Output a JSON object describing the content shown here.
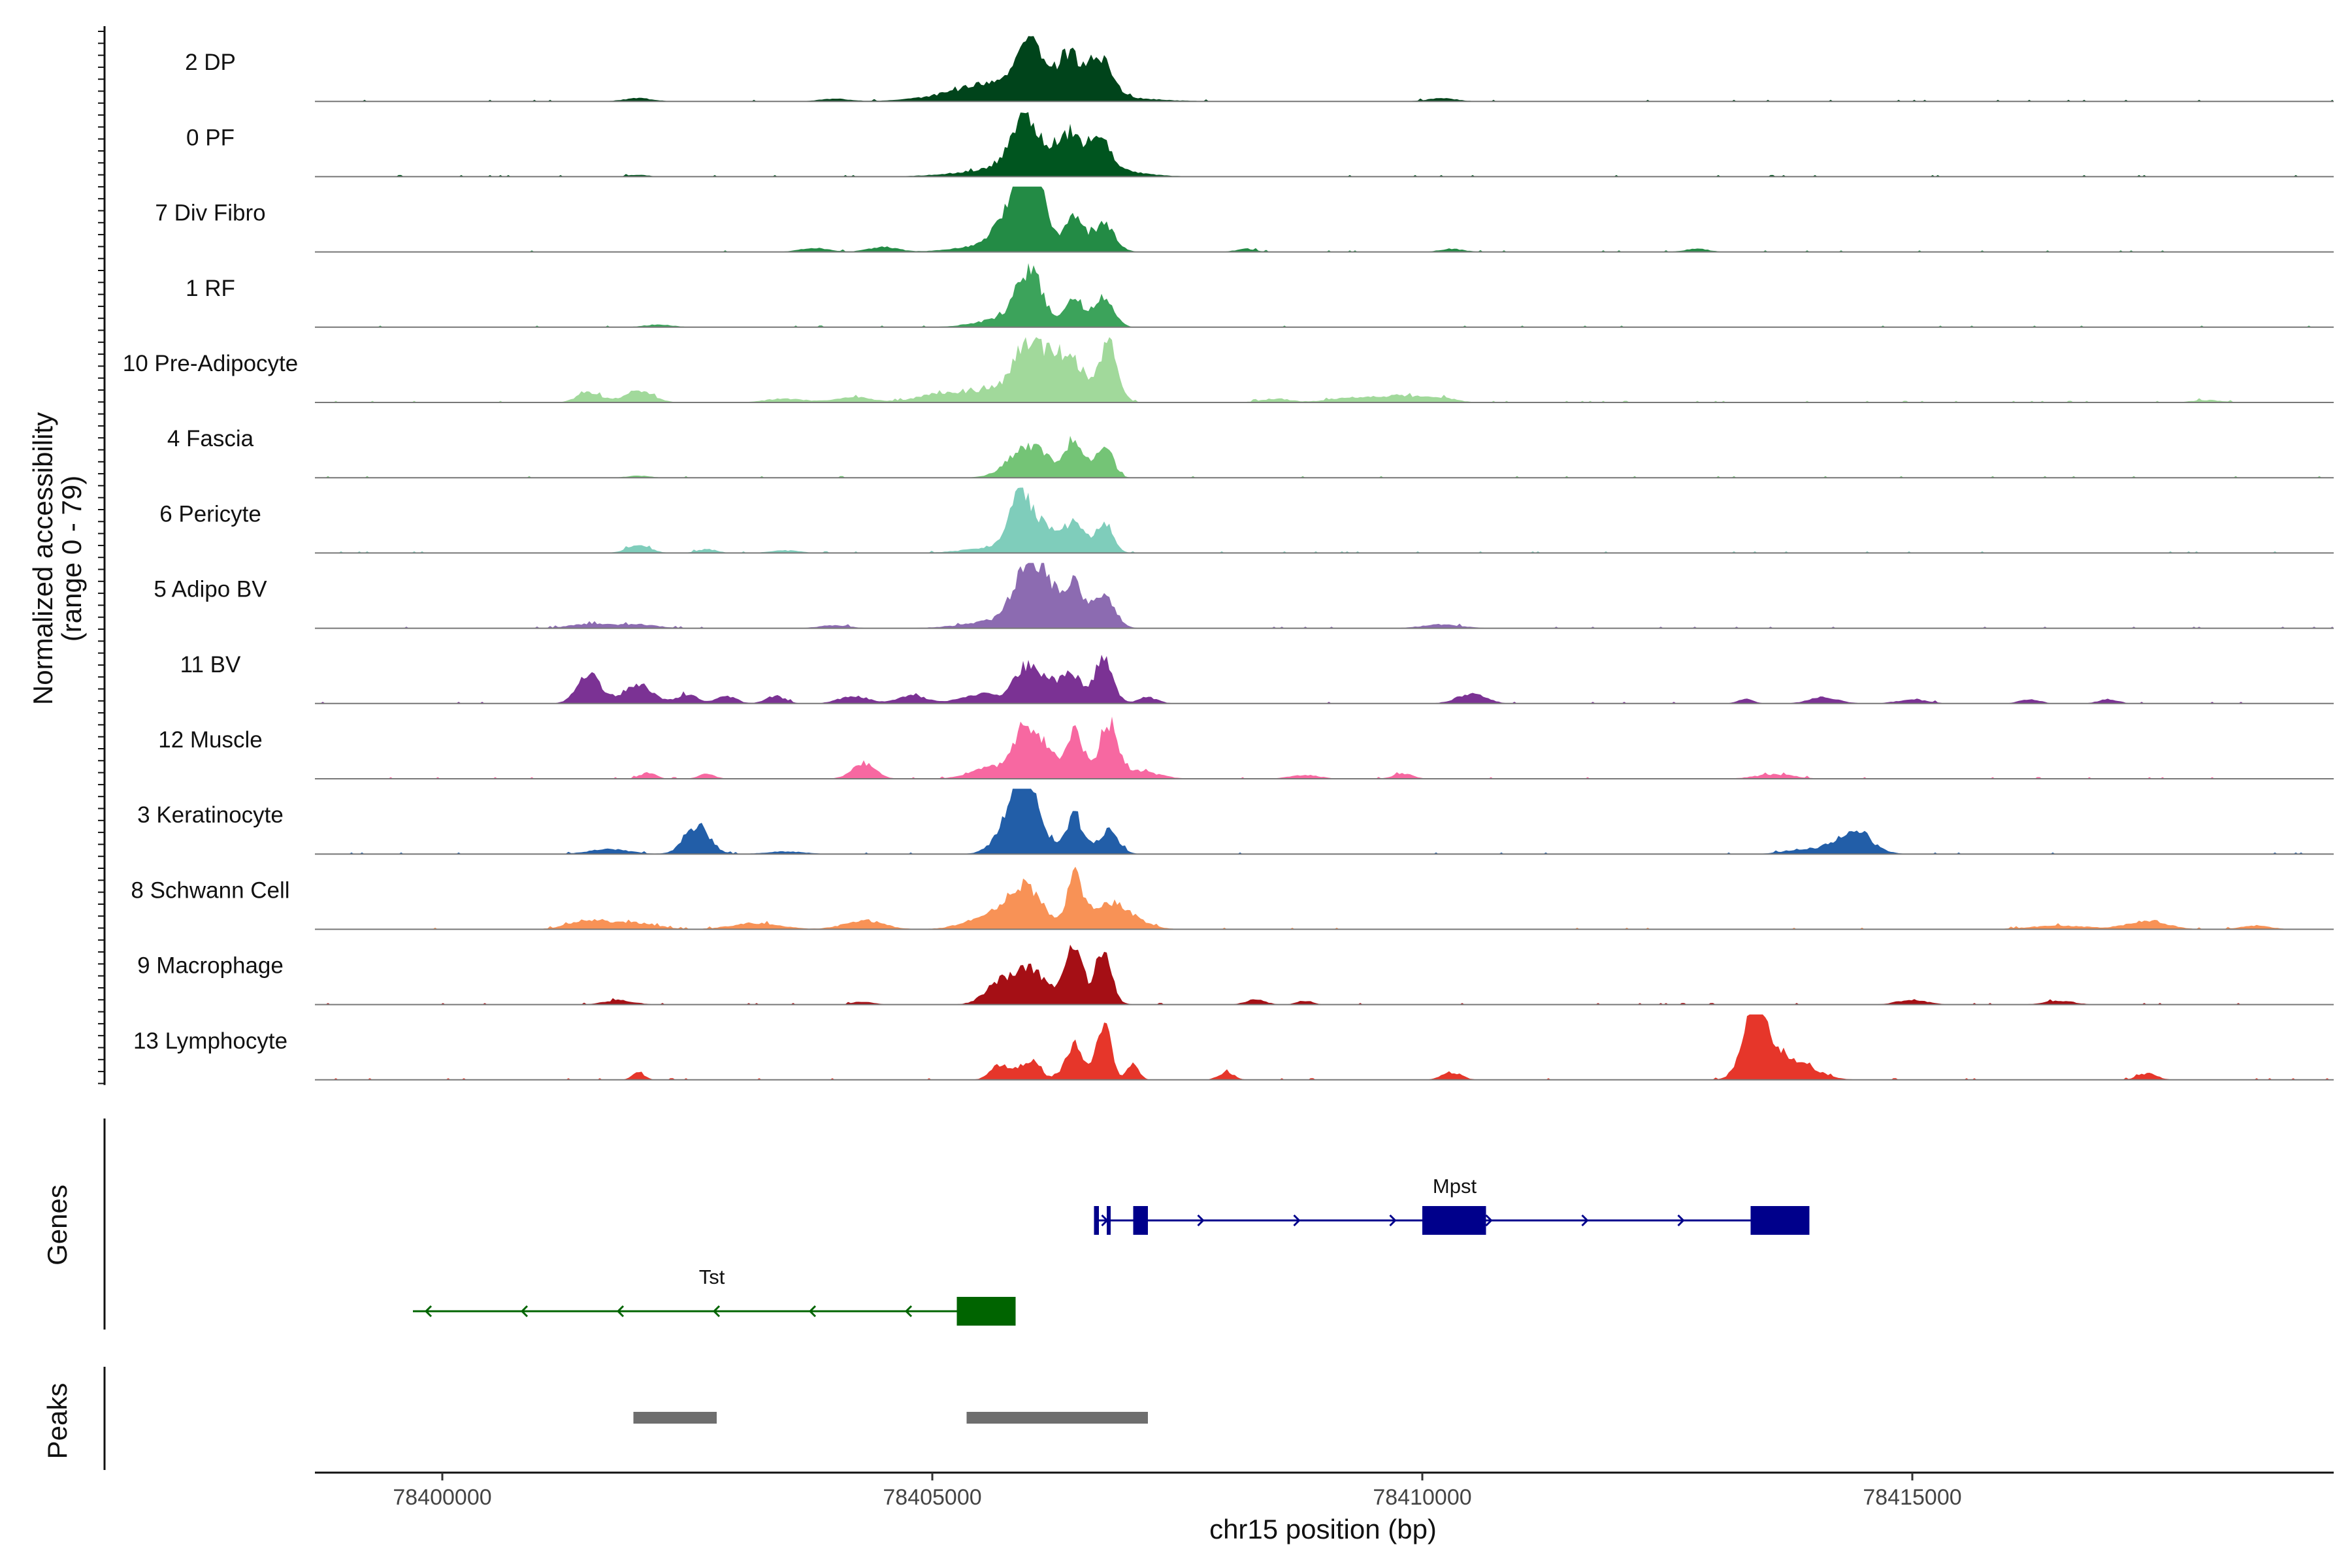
{
  "chart_data": {
    "type": "area",
    "subtype": "genome coverage track",
    "y_axis_title_line1": "Normalized accessibility",
    "y_axis_title_line2": "(range 0 - 79)",
    "y_range": [
      0,
      79
    ],
    "x_axis_title": "chr15 position (bp)",
    "x_range": [
      78398700,
      78419300
    ],
    "x_ticks": [
      78400000,
      78405000,
      78410000,
      78415000
    ],
    "x_tick_labels": [
      "78400000",
      "78405000",
      "78410000",
      "78415000"
    ],
    "panel_labels": {
      "genes": "Genes",
      "peaks": "Peaks"
    },
    "tracks": [
      {
        "name": "2 DP",
        "color": "#00441b",
        "peaks": [
          [
            78405950,
            0.55,
            120
          ],
          [
            78406030,
            0.32,
            80
          ],
          [
            78406380,
            0.58,
            110
          ],
          [
            78406700,
            0.62,
            120
          ],
          [
            78405600,
            0.14,
            380
          ],
          [
            78406050,
            0.2,
            650
          ],
          [
            78402000,
            0.05,
            150
          ],
          [
            78404000,
            0.04,
            150
          ],
          [
            78410200,
            0.05,
            150
          ]
        ]
      },
      {
        "name": "0 PF",
        "color": "#00551f",
        "peaks": [
          [
            78405950,
            0.75,
            140
          ],
          [
            78406380,
            0.48,
            110
          ],
          [
            78406700,
            0.55,
            110
          ],
          [
            78405900,
            0.15,
            500
          ],
          [
            78406600,
            0.12,
            400
          ],
          [
            78402000,
            0.03,
            100
          ]
        ]
      },
      {
        "name": "7 Div Fibro",
        "color": "#238b45",
        "peaks": [
          [
            78405950,
            0.98,
            110
          ],
          [
            78406100,
            0.5,
            100
          ],
          [
            78405800,
            0.4,
            150
          ],
          [
            78406450,
            0.47,
            90
          ],
          [
            78406750,
            0.42,
            110
          ],
          [
            78405850,
            0.18,
            400
          ],
          [
            78403800,
            0.06,
            150
          ],
          [
            78404500,
            0.08,
            150
          ],
          [
            78408200,
            0.05,
            100
          ],
          [
            78410300,
            0.05,
            120
          ],
          [
            78412800,
            0.05,
            120
          ]
        ]
      },
      {
        "name": "1 RF",
        "color": "#3ca35b",
        "peaks": [
          [
            78405950,
            0.5,
            120
          ],
          [
            78406050,
            0.38,
            100
          ],
          [
            78406450,
            0.45,
            90
          ],
          [
            78406750,
            0.48,
            100
          ],
          [
            78405800,
            0.15,
            300
          ],
          [
            78402200,
            0.04,
            150
          ]
        ]
      },
      {
        "name": "10 Pre-Adipocyte",
        "color": "#a1d99b",
        "peaks": [
          [
            78405950,
            0.58,
            120
          ],
          [
            78406200,
            0.55,
            150
          ],
          [
            78406450,
            0.45,
            120
          ],
          [
            78406800,
            0.98,
            90
          ],
          [
            78405800,
            0.25,
            450
          ],
          [
            78401500,
            0.16,
            120
          ],
          [
            78402000,
            0.18,
            150
          ],
          [
            78403500,
            0.06,
            200
          ],
          [
            78404200,
            0.08,
            200
          ],
          [
            78405000,
            0.08,
            200
          ],
          [
            78408500,
            0.06,
            150
          ],
          [
            78409300,
            0.08,
            250
          ],
          [
            78409800,
            0.1,
            200
          ],
          [
            78410200,
            0.07,
            150
          ],
          [
            78418000,
            0.04,
            150
          ]
        ]
      },
      {
        "name": "4 Fascia",
        "color": "#74c476",
        "peaks": [
          [
            78405950,
            0.3,
            180
          ],
          [
            78406450,
            0.55,
            80
          ],
          [
            78406750,
            0.5,
            90
          ],
          [
            78406100,
            0.22,
            250
          ],
          [
            78402000,
            0.03,
            120
          ]
        ]
      },
      {
        "name": "6 Pericyte",
        "color": "#7fcdbb",
        "peaks": [
          [
            78405900,
            0.78,
            110
          ],
          [
            78406150,
            0.35,
            120
          ],
          [
            78406450,
            0.5,
            90
          ],
          [
            78406750,
            0.5,
            90
          ],
          [
            78405800,
            0.12,
            350
          ],
          [
            78402000,
            0.12,
            120
          ],
          [
            78402700,
            0.06,
            100
          ],
          [
            78403500,
            0.04,
            150
          ]
        ]
      },
      {
        "name": "5 Adipo BV",
        "color": "#8c6bb1",
        "peaks": [
          [
            78405950,
            0.7,
            130
          ],
          [
            78406150,
            0.55,
            150
          ],
          [
            78406450,
            0.6,
            100
          ],
          [
            78406750,
            0.52,
            110
          ],
          [
            78405850,
            0.15,
            400
          ],
          [
            78401500,
            0.07,
            200
          ],
          [
            78402000,
            0.06,
            200
          ],
          [
            78404000,
            0.05,
            150
          ],
          [
            78410200,
            0.06,
            200
          ]
        ]
      },
      {
        "name": "11 BV",
        "color": "#7b3294",
        "peaks": [
          [
            78401500,
            0.45,
            120
          ],
          [
            78402000,
            0.3,
            150
          ],
          [
            78402500,
            0.15,
            100
          ],
          [
            78402900,
            0.12,
            100
          ],
          [
            78403400,
            0.12,
            100
          ],
          [
            78404200,
            0.12,
            150
          ],
          [
            78404800,
            0.12,
            150
          ],
          [
            78405500,
            0.15,
            200
          ],
          [
            78405950,
            0.5,
            120
          ],
          [
            78406200,
            0.35,
            150
          ],
          [
            78406450,
            0.38,
            90
          ],
          [
            78406750,
            0.78,
            90
          ],
          [
            78407200,
            0.1,
            100
          ],
          [
            78410500,
            0.15,
            150
          ],
          [
            78413300,
            0.07,
            80
          ],
          [
            78414100,
            0.1,
            150
          ],
          [
            78415000,
            0.07,
            150
          ],
          [
            78416200,
            0.07,
            100
          ],
          [
            78417000,
            0.07,
            100
          ]
        ]
      },
      {
        "name": "12 Muscle",
        "color": "#f768a1",
        "peaks": [
          [
            78405950,
            0.78,
            110
          ],
          [
            78406150,
            0.4,
            100
          ],
          [
            78406450,
            0.8,
            90
          ],
          [
            78406800,
            0.85,
            90
          ],
          [
            78405600,
            0.2,
            200
          ],
          [
            78407100,
            0.12,
            200
          ],
          [
            78402100,
            0.1,
            80
          ],
          [
            78402700,
            0.08,
            80
          ],
          [
            78404300,
            0.25,
            120
          ],
          [
            78408800,
            0.06,
            150
          ],
          [
            78409800,
            0.08,
            100
          ],
          [
            78413600,
            0.07,
            200
          ]
        ]
      },
      {
        "name": "3 Keratinocyte",
        "color": "#225ea8",
        "peaks": [
          [
            78405950,
            0.95,
            120
          ],
          [
            78405800,
            0.4,
            150
          ],
          [
            78406450,
            0.5,
            80
          ],
          [
            78406800,
            0.35,
            100
          ],
          [
            78406200,
            0.15,
            300
          ],
          [
            78402600,
            0.42,
            130
          ],
          [
            78401700,
            0.08,
            200
          ],
          [
            78403500,
            0.04,
            200
          ],
          [
            78414400,
            0.35,
            180
          ],
          [
            78413900,
            0.08,
            200
          ]
        ]
      },
      {
        "name": "8 Schwann Cell",
        "color": "#f89256",
        "peaks": [
          [
            78405950,
            0.62,
            180
          ],
          [
            78406450,
            0.78,
            80
          ],
          [
            78406800,
            0.35,
            180
          ],
          [
            78405600,
            0.2,
            250
          ],
          [
            78407000,
            0.12,
            200
          ],
          [
            78401500,
            0.15,
            200
          ],
          [
            78402000,
            0.1,
            200
          ],
          [
            78403200,
            0.1,
            250
          ],
          [
            78404300,
            0.14,
            200
          ],
          [
            78417400,
            0.14,
            200
          ],
          [
            78416500,
            0.06,
            300
          ],
          [
            78418500,
            0.06,
            150
          ]
        ]
      },
      {
        "name": "9 Macrophage",
        "color": "#a50f15",
        "peaks": [
          [
            78405700,
            0.35,
            150
          ],
          [
            78406000,
            0.38,
            120
          ],
          [
            78406450,
            0.82,
            80
          ],
          [
            78406750,
            0.85,
            80
          ],
          [
            78406200,
            0.2,
            300
          ],
          [
            78401800,
            0.07,
            150
          ],
          [
            78404300,
            0.05,
            100
          ],
          [
            78408300,
            0.08,
            100
          ],
          [
            78408800,
            0.06,
            80
          ],
          [
            78415000,
            0.08,
            150
          ],
          [
            78416500,
            0.06,
            150
          ]
        ]
      },
      {
        "name": "13 Lymphocyte",
        "color": "#e6362a",
        "peaks": [
          [
            78405700,
            0.25,
            100
          ],
          [
            78406000,
            0.3,
            100
          ],
          [
            78406450,
            0.58,
            90
          ],
          [
            78406750,
            0.95,
            70
          ],
          [
            78407050,
            0.25,
            60
          ],
          [
            78402000,
            0.13,
            60
          ],
          [
            78408000,
            0.12,
            80
          ],
          [
            78410300,
            0.12,
            100
          ],
          [
            78413400,
            1.0,
            120
          ],
          [
            78413700,
            0.35,
            250
          ],
          [
            78417400,
            0.1,
            100
          ]
        ]
      }
    ],
    "genes": [
      {
        "name": "Mpst",
        "strand": "+",
        "color": "#00008b",
        "start": 78406650,
        "end": 78413950,
        "exons": [
          [
            78406650,
            78406700
          ],
          [
            78406780,
            78406820
          ],
          [
            78407050,
            78407200
          ],
          [
            78410000,
            78410650
          ],
          [
            78413350,
            78413950
          ]
        ]
      },
      {
        "name": "Tst",
        "strand": "-",
        "color": "#006400",
        "start": 78399700,
        "end": 78405850,
        "exons": [
          [
            78405250,
            78405850
          ]
        ]
      }
    ],
    "peak_regions": [
      {
        "start": 78401950,
        "end": 78402800,
        "color": "#6e6e6e"
      },
      {
        "start": 78405350,
        "end": 78407200,
        "color": "#6e6e6e"
      }
    ]
  }
}
